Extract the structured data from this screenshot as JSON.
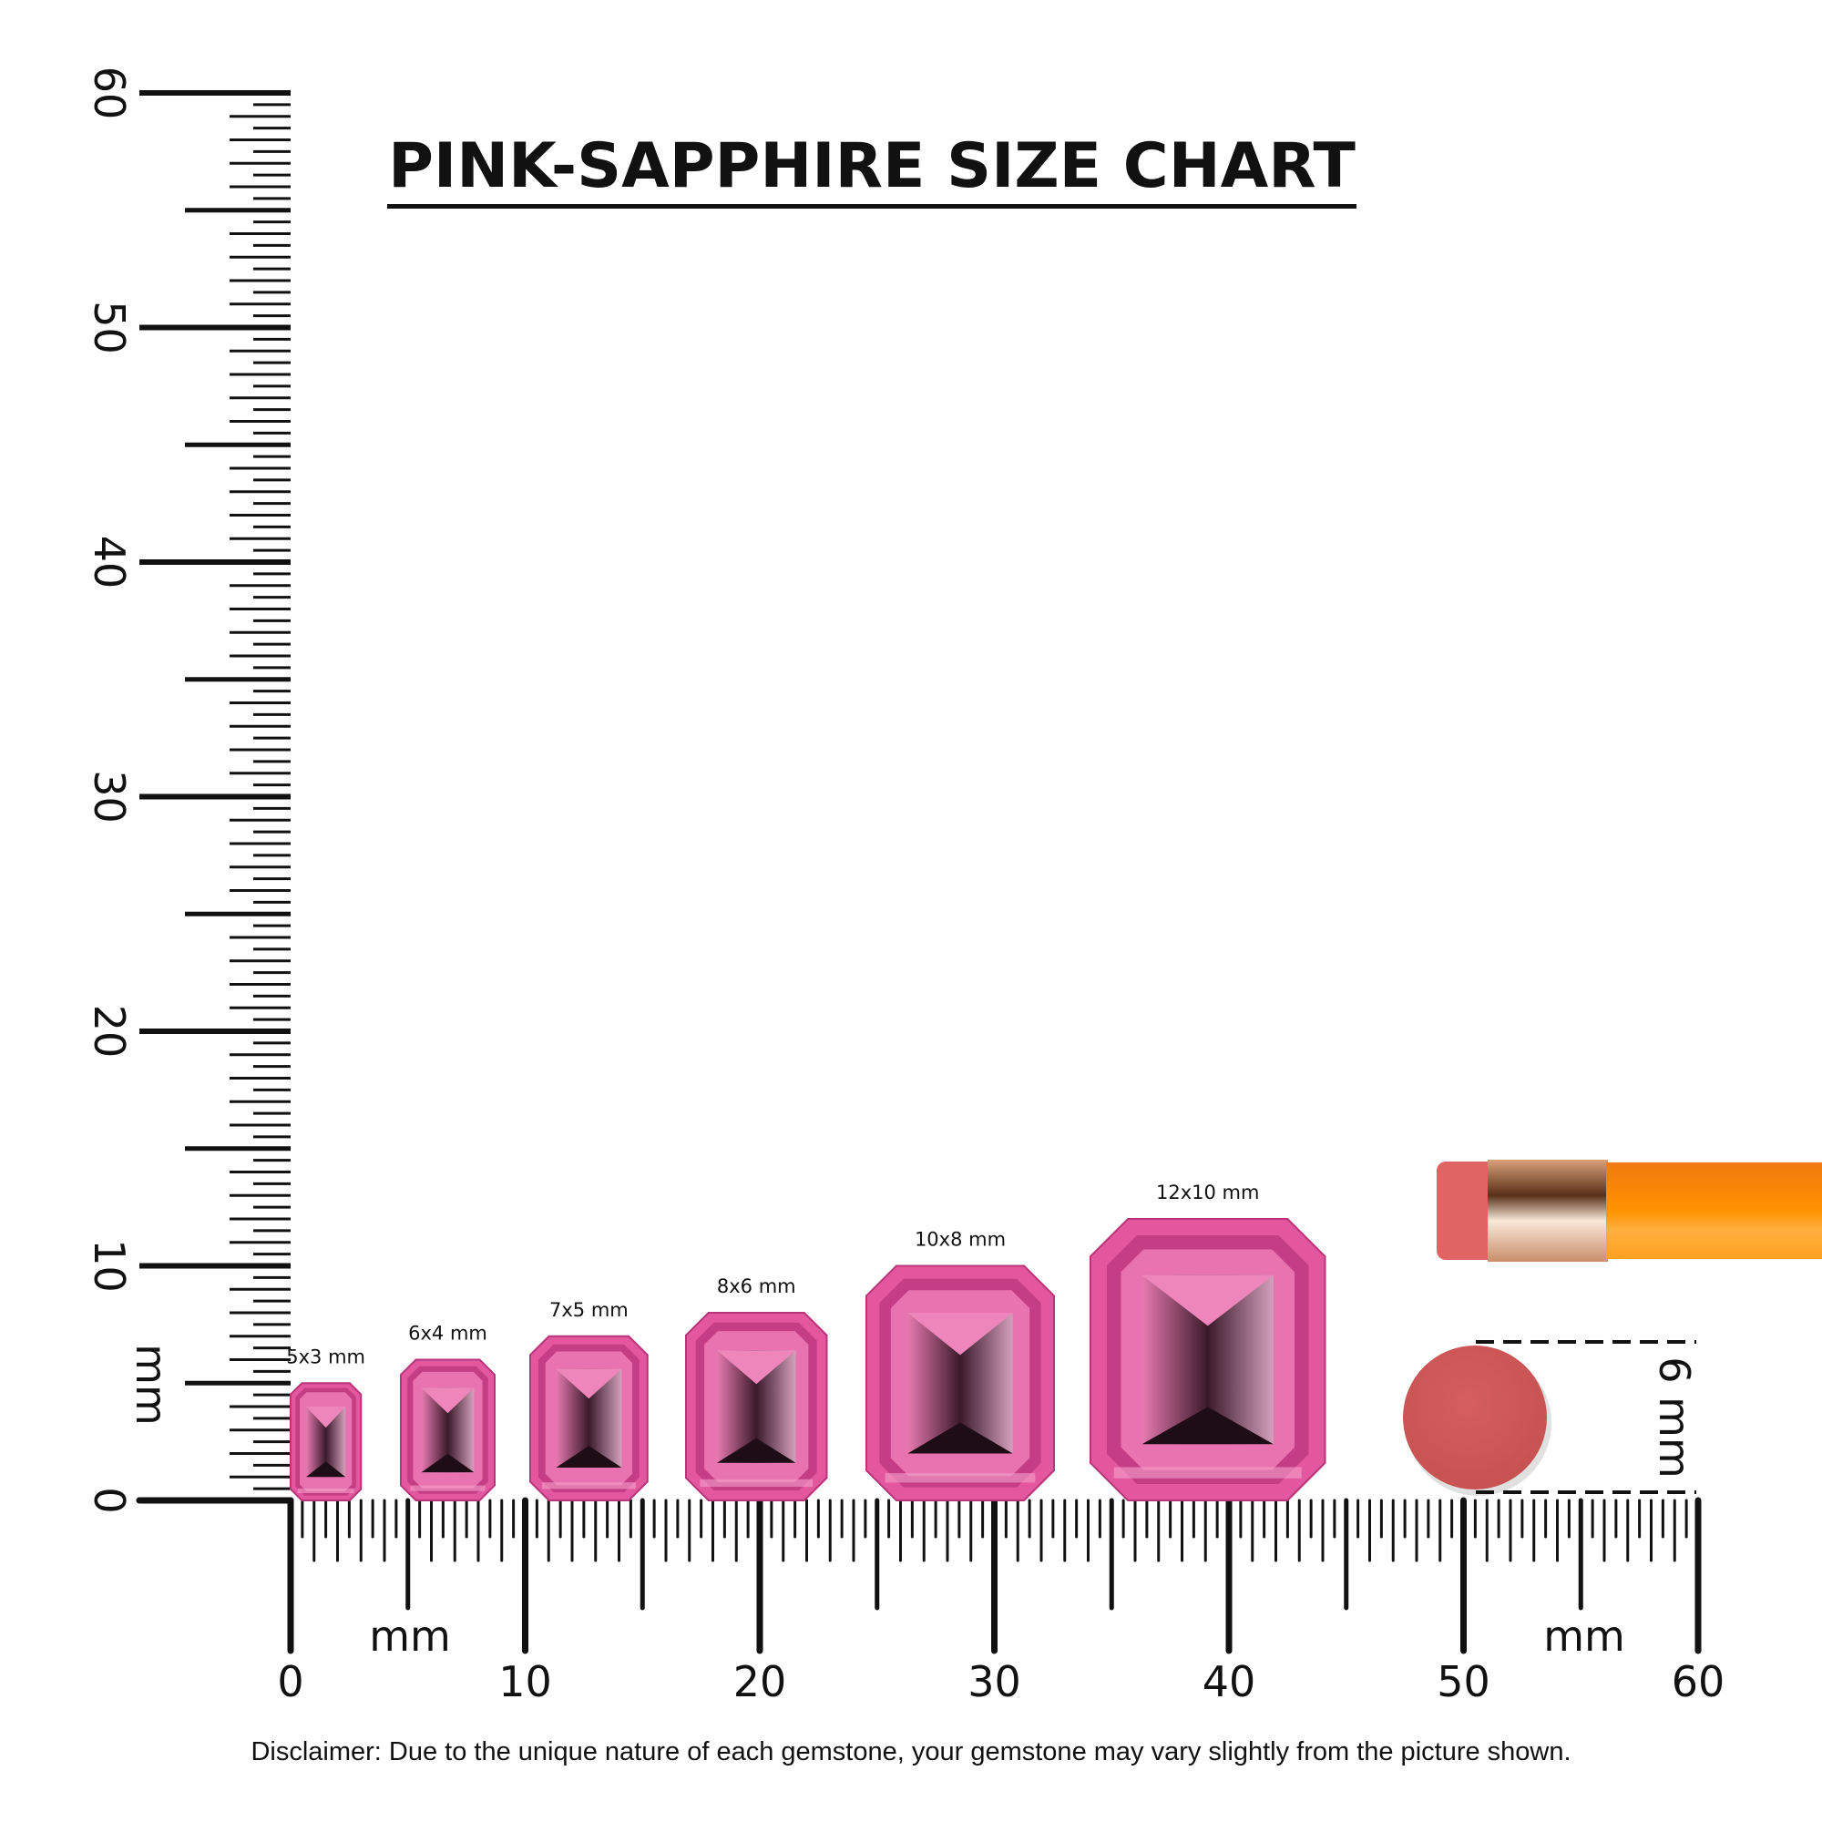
{
  "chart_data": {
    "type": "size-chart",
    "title": "PINK-SAPPHIRE SIZE CHART",
    "x_axis": {
      "unit_label": "mm",
      "range": [
        0,
        60
      ],
      "tick_labels": [
        "0",
        "10",
        "20",
        "30",
        "40",
        "50",
        "60"
      ]
    },
    "y_axis": {
      "unit_label": "mm",
      "range": [
        0,
        60
      ],
      "tick_labels": [
        "0",
        "10",
        "20",
        "30",
        "40",
        "50",
        "60"
      ]
    },
    "gems": [
      {
        "label": "5x3 mm",
        "length_mm": 5,
        "width_mm": 3
      },
      {
        "label": "6x4 mm",
        "length_mm": 6,
        "width_mm": 4
      },
      {
        "label": "7x5 mm",
        "length_mm": 7,
        "width_mm": 5
      },
      {
        "label": "8x6 mm",
        "length_mm": 8,
        "width_mm": 6
      },
      {
        "label": "10x8 mm",
        "length_mm": 10,
        "width_mm": 8
      },
      {
        "label": "12x10 mm",
        "length_mm": 12,
        "width_mm": 10
      }
    ],
    "reference": {
      "object": "pencil eraser",
      "label": "6 mm",
      "diameter_mm": 6
    },
    "colors": {
      "gem": "#e0559c",
      "gem_dark": "#3a1a2a",
      "eraser": "#d05a5a",
      "pencil": "#ff8c00"
    }
  },
  "disclaimer": "Disclaimer: Due to the unique nature of each gemstone, your gemstone may vary slightly from the picture shown."
}
